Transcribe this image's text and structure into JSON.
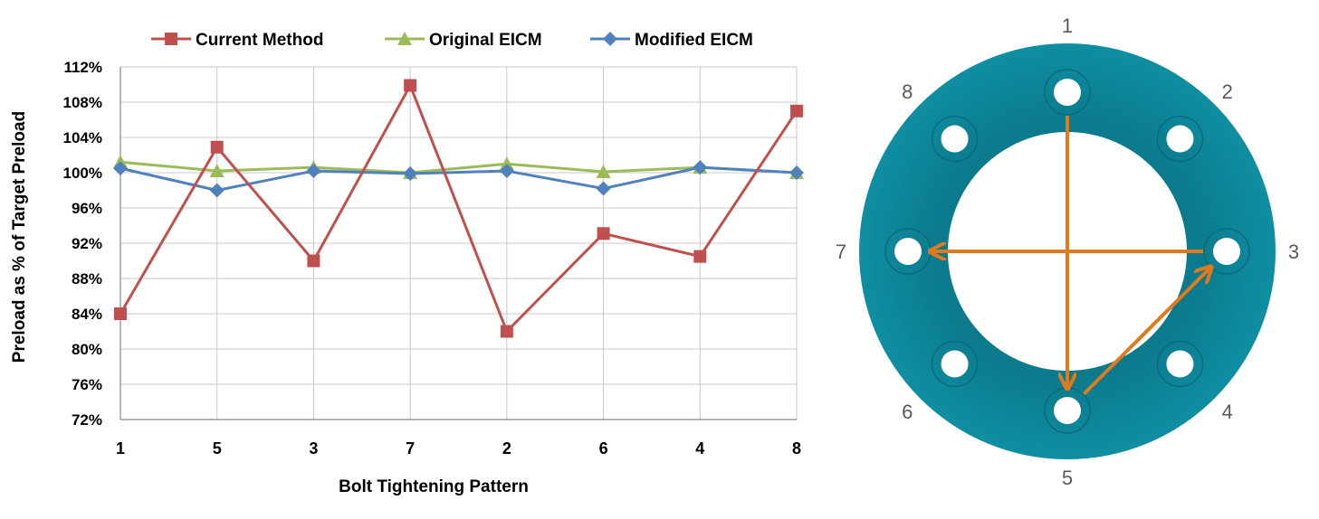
{
  "chart_data": {
    "type": "line",
    "title": "",
    "xlabel": "Bolt Tightening Pattern",
    "ylabel": "Preload as % of Target Preload",
    "categories": [
      "1",
      "5",
      "3",
      "7",
      "2",
      "6",
      "4",
      "8"
    ],
    "y_ticks": [
      "72%",
      "76%",
      "80%",
      "84%",
      "88%",
      "92%",
      "96%",
      "100%",
      "104%",
      "108%",
      "112%"
    ],
    "ylim": [
      72,
      112
    ],
    "y_unit": "%",
    "grid": true,
    "legend_position": "top",
    "series": [
      {
        "name": "Current Method",
        "color": "#c0504d",
        "marker": "square",
        "values": [
          84.0,
          102.9,
          90.0,
          109.9,
          82.0,
          93.1,
          90.5,
          107.0
        ]
      },
      {
        "name": "Original EICM",
        "color": "#9bbb59",
        "marker": "triangle",
        "values": [
          101.2,
          100.2,
          100.6,
          100.0,
          101.0,
          100.1,
          100.6,
          100.0
        ]
      },
      {
        "name": "Modified EICM",
        "color": "#4f81bd",
        "marker": "diamond",
        "values": [
          100.5,
          98.0,
          100.2,
          99.9,
          100.2,
          98.2,
          100.6,
          100.0
        ]
      }
    ]
  },
  "flange_diagram": {
    "ring_color": "#0e8396",
    "arrow_color": "#e07a1e",
    "bolt_labels": [
      "1",
      "2",
      "3",
      "4",
      "5",
      "6",
      "7",
      "8"
    ],
    "arrow_sequence": [
      "1",
      "5",
      "3",
      "7"
    ]
  }
}
